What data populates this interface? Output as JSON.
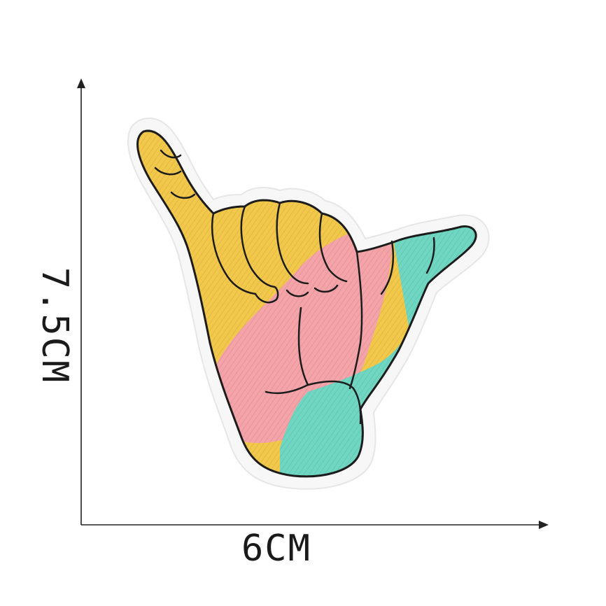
{
  "dimensions": {
    "width_label": "6CM",
    "height_label": "7.5CM"
  },
  "patch": {
    "subject": "shaka-hand-icon",
    "colors": {
      "yellow": "#f2c84b",
      "pink": "#f4a3a8",
      "teal": "#6fd6c2",
      "outline": "#1c1c1c",
      "border": "#f7f7f7"
    }
  }
}
